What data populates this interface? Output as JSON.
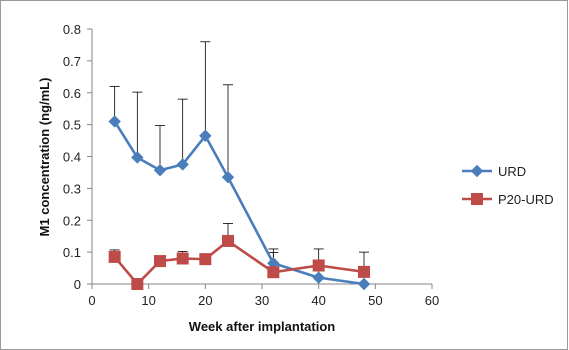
{
  "chart_data": {
    "type": "line",
    "title": "",
    "xlabel": "Week after implantation",
    "ylabel": "M1 concentration  (ng/mL)",
    "xlim": [
      0,
      60
    ],
    "ylim": [
      0,
      0.8
    ],
    "x_ticks": [
      0,
      10,
      20,
      30,
      40,
      50,
      60
    ],
    "y_ticks": [
      0,
      0.1,
      0.2,
      0.3,
      0.4,
      0.5,
      0.6,
      0.7,
      0.8
    ],
    "x_tick_labels": [
      "0",
      "10",
      "20",
      "30",
      "40",
      "50",
      "60"
    ],
    "y_tick_labels": [
      "0",
      "0.1",
      "0.2",
      "0.3",
      "0.4",
      "0.5",
      "0.6",
      "0.7",
      "0.8"
    ],
    "grid": false,
    "legend_position": "right",
    "error_bars": "upper",
    "series": [
      {
        "name": "URD",
        "color": "#4A7EBB",
        "marker": "diamond",
        "x": [
          4,
          8,
          12,
          16,
          20,
          24,
          32,
          40,
          48
        ],
        "y": [
          0.51,
          0.397,
          0.357,
          0.375,
          0.465,
          0.335,
          0.065,
          0.02,
          0.0
        ],
        "error_upper": [
          0.11,
          0.205,
          0.14,
          0.205,
          0.295,
          0.29,
          0.045,
          0.09,
          0.1
        ]
      },
      {
        "name": "P20-URD",
        "color": "#BE4B48",
        "marker": "square",
        "x": [
          4,
          8,
          12,
          16,
          20,
          24,
          32,
          40,
          48
        ],
        "y": [
          0.085,
          0.0,
          0.072,
          0.08,
          0.078,
          0.135,
          0.037,
          0.058,
          0.038
        ],
        "error_upper": [
          0.022,
          0.0,
          0.0,
          0.022,
          0.0,
          0.055,
          0.062,
          0.0,
          0.0
        ]
      }
    ]
  }
}
